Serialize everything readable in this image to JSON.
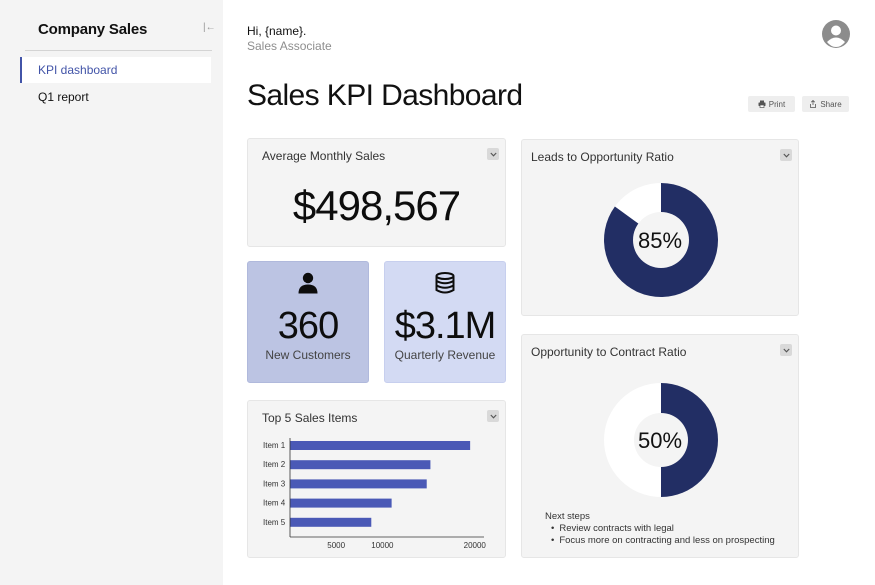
{
  "sidebar": {
    "title": "Company Sales",
    "items": [
      {
        "label": "KPI dashboard",
        "active": true
      },
      {
        "label": "Q1 report",
        "active": false
      }
    ]
  },
  "header": {
    "greeting": "Hi, {name}.",
    "role": "Sales Associate",
    "title": "Sales KPI Dashboard",
    "print_label": "Print",
    "share_label": "Share"
  },
  "cards": {
    "avg_monthly": {
      "title": "Average Monthly Sales",
      "value": "$498,567"
    },
    "customers": {
      "value": "360",
      "label": "New Customers"
    },
    "revenue": {
      "value": "$3.1M",
      "label": "Quarterly Revenue"
    },
    "top_items": {
      "title": "Top 5 Sales Items"
    },
    "leads_ratio": {
      "title": "Leads to Opportunity Ratio",
      "percent_label": "85%",
      "percent": 85
    },
    "contract_ratio": {
      "title": "Opportunity to Contract Ratio",
      "percent_label": "50%",
      "percent": 50,
      "next_steps_title": "Next steps",
      "next_steps": [
        "Review contracts with legal",
        "Focus more on contracting and less on prospecting"
      ]
    }
  },
  "colors": {
    "accent": "#4254a8",
    "bar": "#4a59b6",
    "donut": "#222e64",
    "customers_bg": "#bcc4e3",
    "revenue_bg": "#d3daf3"
  },
  "chart_data": {
    "type": "bar",
    "orientation": "horizontal",
    "title": "Top 5 Sales Items",
    "categories": [
      "Item 1",
      "Item 2",
      "Item 3",
      "Item 4",
      "Item 5"
    ],
    "values": [
      19500,
      15200,
      14800,
      11000,
      8800
    ],
    "x_ticks": [
      5000,
      10000,
      20000
    ],
    "xlim": [
      0,
      21000
    ]
  }
}
